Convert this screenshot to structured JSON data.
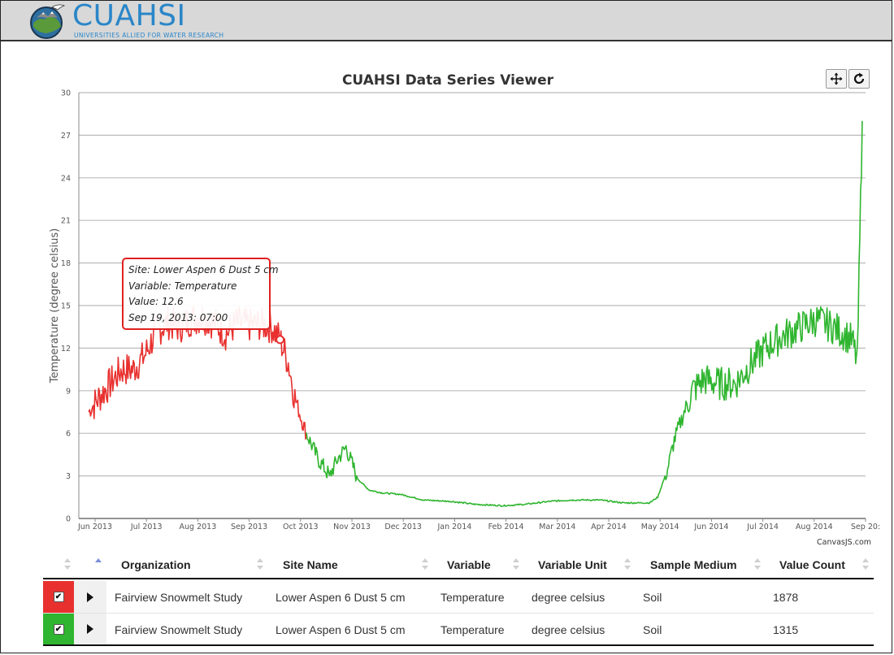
{
  "brand": {
    "name": "CUAHSI",
    "tagline": "UNIVERSITIES ALLIED FOR WATER RESEARCH",
    "globe_icon": "globe-logo-icon",
    "color": "#2a86c8"
  },
  "toolbar": {
    "pan_icon": "pan-move-icon",
    "reset_icon": "reset-rotate-icon"
  },
  "chart_data": {
    "type": "line",
    "title": "CUAHSI Data Series Viewer",
    "xlabel": "",
    "ylabel": "Temperature (degree celsius)",
    "ylim": [
      0,
      30
    ],
    "yticks": [
      0,
      3,
      6,
      9,
      12,
      15,
      18,
      21,
      24,
      27,
      30
    ],
    "xticks": [
      "Jun 2013",
      "Jul 2013",
      "Aug 2013",
      "Sep 2013",
      "Oct 2013",
      "Nov 2013",
      "Dec 2013",
      "Jan 2014",
      "Feb 2014",
      "Mar 2014",
      "Apr 2014",
      "May 2014",
      "Jun 2014",
      "Jul 2014",
      "Aug 2014",
      "Sep 20:"
    ],
    "grid": true,
    "credit": "CanvasJS.com",
    "series": [
      {
        "color": "#e8312f",
        "x": [
          "2013-05-26",
          "2013-06-01",
          "2013-06-08",
          "2013-06-15",
          "2013-06-22",
          "2013-06-29",
          "2013-07-06",
          "2013-07-13",
          "2013-07-20",
          "2013-07-27",
          "2013-08-03",
          "2013-08-10",
          "2013-08-17",
          "2013-08-24",
          "2013-08-31",
          "2013-09-07",
          "2013-09-14",
          "2013-09-19",
          "2013-09-24",
          "2013-09-28",
          "2013-10-02",
          "2013-10-05"
        ],
        "y": [
          7.5,
          8.5,
          9.5,
          10.5,
          10.5,
          11.5,
          13.2,
          13.8,
          13.5,
          14.0,
          14.2,
          13.8,
          13.0,
          13.8,
          13.6,
          13.7,
          13.5,
          12.6,
          11.0,
          8.5,
          7.0,
          6.0
        ]
      },
      {
        "color": "#2fb52f",
        "x": [
          "2013-10-05",
          "2013-10-12",
          "2013-10-19",
          "2013-10-24",
          "2013-10-29",
          "2013-11-05",
          "2013-11-12",
          "2013-11-20",
          "2013-12-01",
          "2013-12-15",
          "2014-01-01",
          "2014-01-15",
          "2014-02-01",
          "2014-02-15",
          "2014-03-01",
          "2014-03-15",
          "2014-04-01",
          "2014-04-15",
          "2014-05-01",
          "2014-05-06",
          "2014-05-12",
          "2014-05-16",
          "2014-05-22",
          "2014-05-27",
          "2014-06-03",
          "2014-06-12",
          "2014-06-22",
          "2014-07-01",
          "2014-07-10",
          "2014-07-20",
          "2014-08-01",
          "2014-08-10",
          "2014-08-20",
          "2014-08-27",
          "2014-09-01",
          "2014-09-04",
          "2014-09-07"
        ],
        "y": [
          6.0,
          4.2,
          3.0,
          4.2,
          5.0,
          2.8,
          2.0,
          1.8,
          1.7,
          1.3,
          1.2,
          1.0,
          0.9,
          1.0,
          1.2,
          1.3,
          1.3,
          1.1,
          1.1,
          1.5,
          3.5,
          5.5,
          7.5,
          9.0,
          9.8,
          9.5,
          9.5,
          10.8,
          12.0,
          12.8,
          13.5,
          14.0,
          13.5,
          13.0,
          12.5,
          11.0,
          28.0
        ]
      }
    ]
  },
  "tooltip": {
    "site": "Site: Lower Aspen 6 Dust 5 cm",
    "variable": "Variable: Temperature",
    "value": "Value: 12.6",
    "time": "Sep 19, 2013: 07:00",
    "marker_x": "2013-09-19",
    "marker_y": 12.6
  },
  "table": {
    "columns": [
      "Organization",
      "Site Name",
      "Variable",
      "Variable Unit",
      "Sample Medium",
      "Value Count"
    ],
    "rows": [
      {
        "color": "#e8312f",
        "checked": "✔",
        "organization": "Fairview Snowmelt Study",
        "site": "Lower Aspen 6 Dust 5 cm",
        "variable": "Temperature",
        "unit": "degree celsius",
        "medium": "Soil",
        "count": "1878"
      },
      {
        "color": "#2fb52f",
        "checked": "✔",
        "organization": "Fairview Snowmelt Study",
        "site": "Lower Aspen 6 Dust 5 cm",
        "variable": "Temperature",
        "unit": "degree celsius",
        "medium": "Soil",
        "count": "1315"
      }
    ]
  }
}
